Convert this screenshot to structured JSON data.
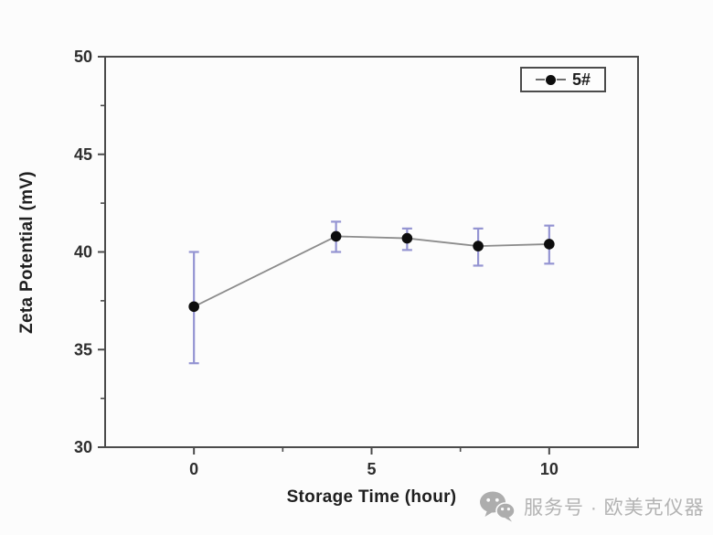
{
  "page": {
    "background": "#fcfcfc"
  },
  "chart_data": {
    "type": "line",
    "title": "",
    "xlabel": "Storage Time (hour)",
    "ylabel": "Zeta Potential (mV)",
    "xlim": [
      -2.5,
      12.5
    ],
    "ylim": [
      30,
      50
    ],
    "x_major_ticks": [
      0,
      5,
      10
    ],
    "x_minor_ticks": [
      2.5,
      7.5
    ],
    "y_major_ticks": [
      30,
      35,
      40,
      45,
      50
    ],
    "y_minor_ticks": [
      32.5,
      37.5,
      42.5,
      47.5
    ],
    "grid": false,
    "legend_position": "top-right",
    "axis_color": "#4b4b4b",
    "tick_label_color": "#2e2e2e",
    "series": [
      {
        "name": "5#",
        "x": [
          0,
          4,
          6,
          8,
          10
        ],
        "y": [
          37.2,
          40.8,
          40.7,
          40.3,
          40.4
        ],
        "y_err_plus": [
          2.8,
          0.75,
          0.5,
          0.9,
          0.95
        ],
        "y_err_minus": [
          2.9,
          0.8,
          0.6,
          1.0,
          1.0
        ],
        "marker": "filled-circle",
        "marker_color": "#0d0d0d",
        "line_color": "#8c8c8c",
        "error_bar_color": "#9494d2"
      }
    ]
  },
  "legend": {
    "label": "5#",
    "symbol": "line-dot-line"
  },
  "watermark": {
    "icon": "wechat-icon",
    "text": "服务号 · 欧美克仪器",
    "color": "#b3b3b3"
  }
}
